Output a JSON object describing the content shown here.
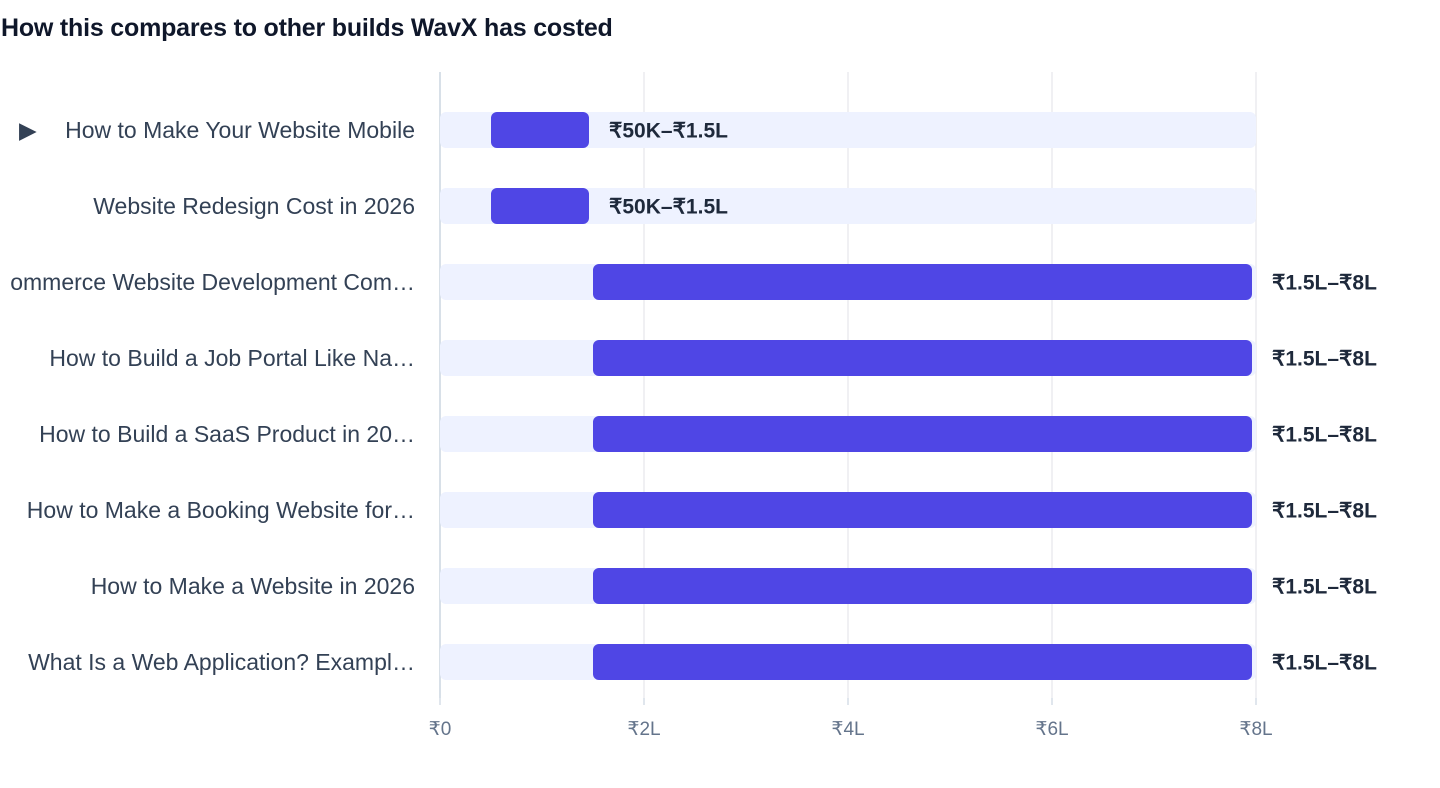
{
  "chart_data": {
    "type": "bar",
    "orientation": "horizontal",
    "subtype": "floating-range",
    "title": "How this compares to other builds WavX has costed",
    "xlabel": "",
    "ylabel": "",
    "xlim": [
      0,
      8
    ],
    "x_unit": "L (lakh ₹)",
    "ticks": [
      {
        "value": 0,
        "label": "₹0"
      },
      {
        "value": 2,
        "label": "₹2L"
      },
      {
        "value": 4,
        "label": "₹4L"
      },
      {
        "value": 6,
        "label": "₹6L"
      },
      {
        "value": 8,
        "label": "₹8L"
      }
    ],
    "grid": true,
    "legend": "none",
    "colors": {
      "bar": "#4f46e5",
      "track": "#eef2ff",
      "grid": "#e5e7eb",
      "axis": "#cbd5e1"
    },
    "rows": [
      {
        "label": "How to Make Your Website Mobile",
        "marker": "▶",
        "highlighted": true,
        "low": 0.5,
        "high": 1.5,
        "range_label": "₹50K–₹1.5L"
      },
      {
        "label": "Website Redesign Cost in 2026",
        "marker": "",
        "highlighted": false,
        "low": 0.5,
        "high": 1.5,
        "range_label": "₹50K–₹1.5L"
      },
      {
        "label": "ommerce Website Development Com…",
        "marker": "",
        "highlighted": false,
        "low": 1.5,
        "high": 8,
        "range_label": "₹1.5L–₹8L"
      },
      {
        "label": "How to Build a Job Portal Like Na…",
        "marker": "",
        "highlighted": false,
        "low": 1.5,
        "high": 8,
        "range_label": "₹1.5L–₹8L"
      },
      {
        "label": "How to Build a SaaS Product in 20…",
        "marker": "",
        "highlighted": false,
        "low": 1.5,
        "high": 8,
        "range_label": "₹1.5L–₹8L"
      },
      {
        "label": "How to Make a Booking Website for…",
        "marker": "",
        "highlighted": false,
        "low": 1.5,
        "high": 8,
        "range_label": "₹1.5L–₹8L"
      },
      {
        "label": "How to Make a Website in 2026",
        "marker": "",
        "highlighted": false,
        "low": 1.5,
        "high": 8,
        "range_label": "₹1.5L–₹8L"
      },
      {
        "label": "What Is a Web Application? Exampl…",
        "marker": "",
        "highlighted": false,
        "low": 1.5,
        "high": 8,
        "range_label": "₹1.5L–₹8L"
      }
    ]
  }
}
